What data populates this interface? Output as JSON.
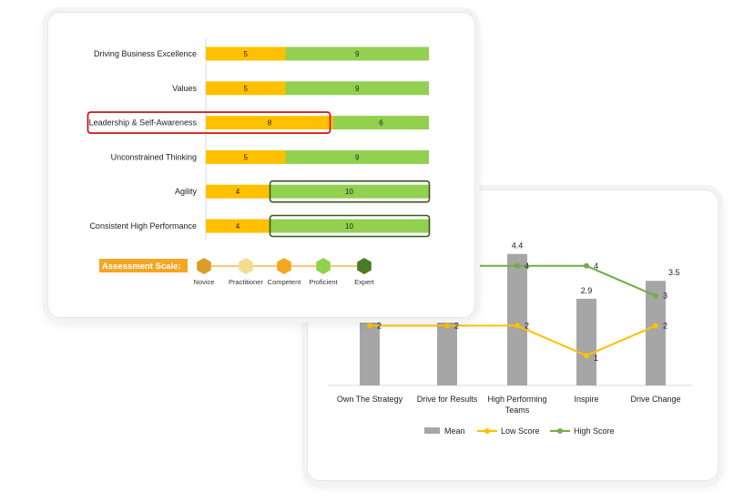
{
  "chart_data": [
    {
      "type": "bar",
      "orientation": "horizontal",
      "stacked": true,
      "categories": [
        "Driving Business Excellence",
        "Values",
        "Leadership & Self-Awareness",
        "Unconstrained Thinking",
        "Agility",
        "Consistent High Performance"
      ],
      "series": [
        {
          "values": [
            5,
            5,
            8,
            5,
            4,
            4
          ],
          "color": "#ffc000"
        },
        {
          "values": [
            9,
            9,
            6,
            9,
            10,
            10
          ],
          "color": "#92d050"
        }
      ],
      "highlights": [
        {
          "category": "Leadership & Self-Awareness",
          "segment": 0,
          "color": "#d00000"
        },
        {
          "category": "Agility",
          "segment": 1,
          "color": "#375623"
        },
        {
          "category": "Consistent High Performance",
          "segment": 1,
          "color": "#375623"
        }
      ],
      "legend": {
        "title": "Assessment Scale:",
        "levels": [
          {
            "label": "Novice",
            "color": "#d89e27"
          },
          {
            "label": "Practitioner",
            "color": "#f2dc8e"
          },
          {
            "label": "Competent",
            "color": "#f5a623"
          },
          {
            "label": "Proficient",
            "color": "#92d050"
          },
          {
            "label": "Expert",
            "color": "#4b7a28"
          }
        ]
      }
    },
    {
      "type": "bar",
      "combo": "bar+line",
      "categories": [
        "Own The Strategy",
        "Drive for Results",
        "High Performing Teams",
        "Inspire",
        "Drive Change"
      ],
      "series": [
        {
          "name": "Mean",
          "type": "bar",
          "values": [
            null,
            null,
            4.4,
            2.9,
            3.5
          ],
          "labels": [
            null,
            null,
            "4.4",
            "2.9",
            "3.5"
          ],
          "color": "#a6a6a6"
        },
        {
          "name": "Low Score",
          "type": "line",
          "values": [
            2,
            2,
            2,
            1,
            2
          ],
          "color": "#ffc000"
        },
        {
          "name": "High Score",
          "type": "line",
          "values": [
            null,
            null,
            4,
            4,
            3
          ],
          "color": "#70ad47"
        }
      ],
      "legend": [
        "Mean",
        "Low Score",
        "High Score"
      ],
      "legend_position": "bottom"
    }
  ]
}
